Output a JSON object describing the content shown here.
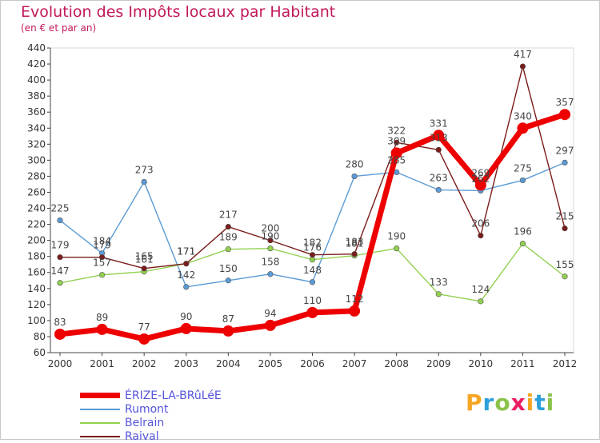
{
  "chart_data": {
    "type": "line",
    "title": "Evolution des Impôts locaux par Habitant",
    "subtitle": "(en € et par an)",
    "categories": [
      "2000",
      "2001",
      "2002",
      "2003",
      "2004",
      "2005",
      "2006",
      "2007",
      "2008",
      "2009",
      "2010",
      "2011",
      "2012"
    ],
    "ylim": [
      60,
      440
    ],
    "yticks": [
      60,
      80,
      100,
      120,
      140,
      160,
      180,
      200,
      220,
      240,
      260,
      280,
      300,
      320,
      340,
      360,
      380,
      400,
      420,
      440
    ],
    "grid": false,
    "legend_position": "bottom-left",
    "series": [
      {
        "name": "ÉRIZE-LA-BRûLéE",
        "color": "#ee0000",
        "values": [
          83,
          89,
          77,
          90,
          87,
          94,
          110,
          112,
          309,
          331,
          269,
          340,
          357
        ]
      },
      {
        "name": "Rumont",
        "color": "#5b9bd5",
        "values": [
          225,
          184,
          273,
          142,
          150,
          158,
          148,
          280,
          285,
          263,
          262,
          275,
          297
        ]
      },
      {
        "name": "Belrain",
        "color": "#92d050",
        "values": [
          147,
          157,
          161,
          171,
          189,
          190,
          176,
          181,
          190,
          133,
          124,
          196,
          155
        ]
      },
      {
        "name": "Raival",
        "color": "#7b1b1b",
        "values": [
          179,
          179,
          165,
          171,
          217,
          200,
          182,
          183,
          322,
          313,
          206,
          417,
          215
        ]
      }
    ]
  },
  "logo": {
    "letters": [
      "P",
      "r",
      "o",
      "x",
      "i",
      "t",
      "i"
    ],
    "colors": [
      "#f5a623",
      "#2ea0dc",
      "#8bc34a",
      "#e91e63",
      "#f5a623",
      "#2ea0dc",
      "#8bc34a"
    ]
  }
}
